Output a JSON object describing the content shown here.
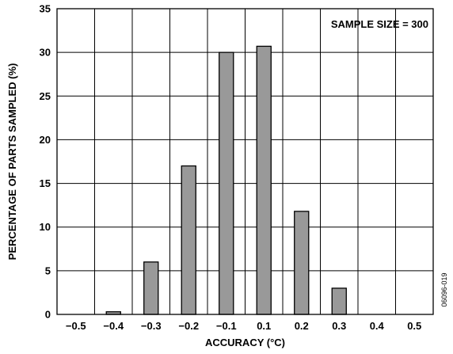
{
  "chart_data": {
    "type": "bar",
    "categories": [
      "−0.5",
      "−0.4",
      "−0.3",
      "−0.2",
      "−0.1",
      "0.1",
      "0.2",
      "0.3",
      "0.4",
      "0.5"
    ],
    "values": [
      0,
      0.3,
      6,
      17,
      30,
      30.7,
      11.8,
      3,
      0,
      0
    ],
    "xlabel": "ACCURACY (°C)",
    "ylabel": "PERCENTAGE OF PARTS SAMPLED (%)",
    "ylim": [
      0,
      35
    ],
    "yticks": [
      "0",
      "5",
      "10",
      "15",
      "20",
      "25",
      "30",
      "35"
    ],
    "grid": true,
    "bar_color": "#999999",
    "annotation": "SAMPLE SIZE = 300",
    "annotation_position": "top-right",
    "figure_id": "06096-019"
  }
}
